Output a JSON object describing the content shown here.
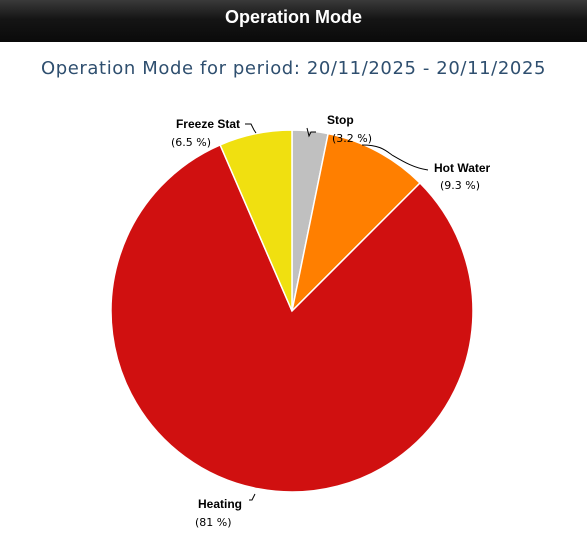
{
  "header": {
    "title": "Operation Mode"
  },
  "chart_data": {
    "type": "pie",
    "title": "Operation Mode for period: 20/11/2025 - 20/11/2025",
    "slices": [
      {
        "name": "Stop",
        "value": 3.2,
        "label": "(3.2 %)",
        "color": "#c0c0c0"
      },
      {
        "name": "Hot Water",
        "value": 9.3,
        "label": "(9.3 %)",
        "color": "#ff7f00"
      },
      {
        "name": "Heating",
        "value": 81,
        "label": "(81 %)",
        "color": "#d01010"
      },
      {
        "name": "Freeze Stat",
        "value": 6.5,
        "label": "(6.5 %)",
        "color": "#f0e010"
      }
    ],
    "start_angle": "12 o'clock",
    "direction": "clockwise",
    "legend": "none"
  }
}
